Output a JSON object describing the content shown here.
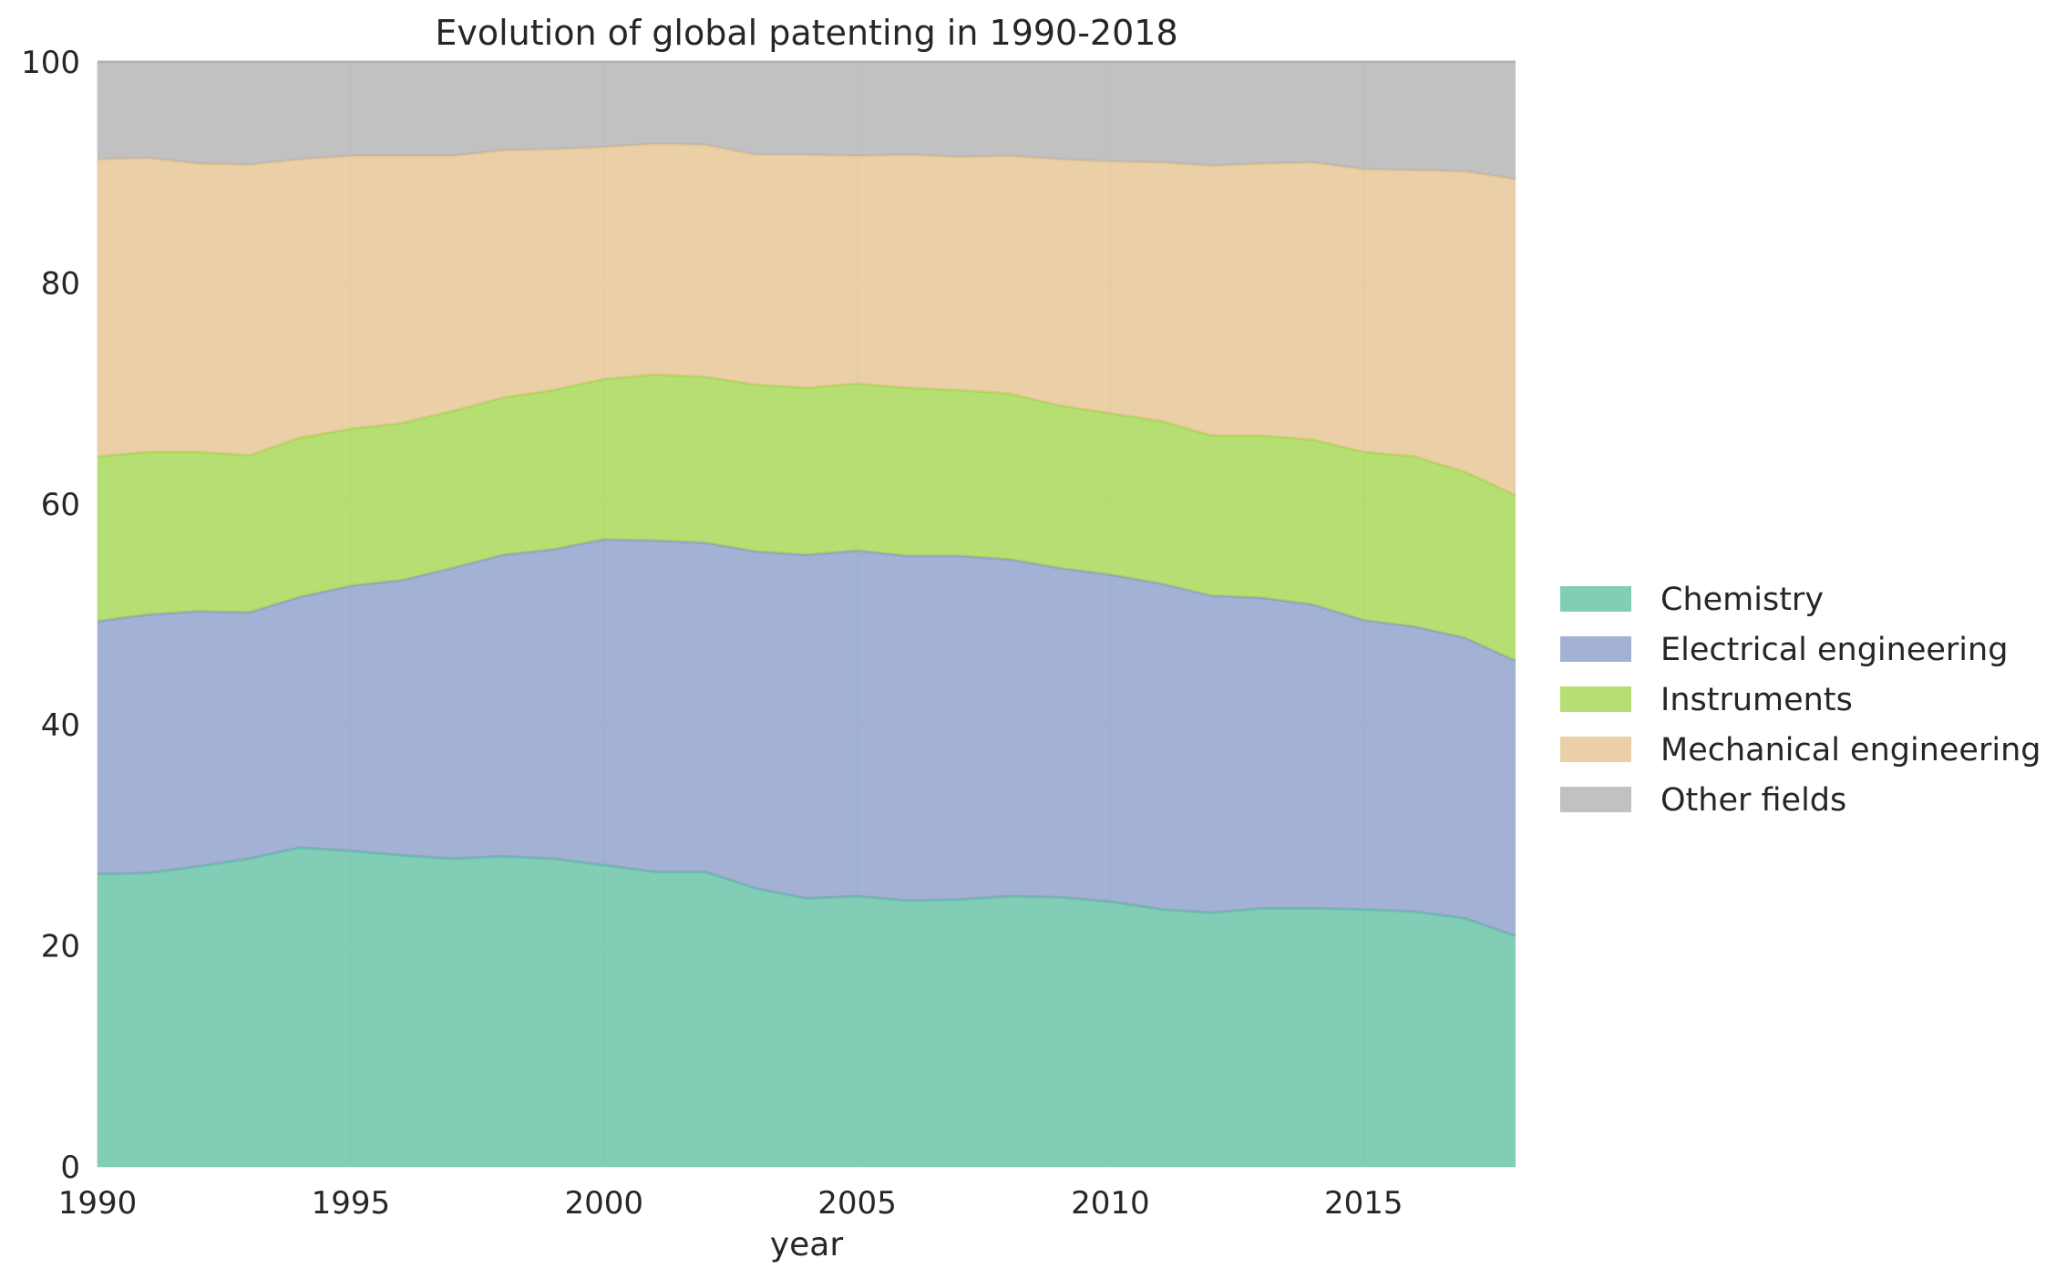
{
  "chart_data": {
    "type": "area",
    "stacked": true,
    "title": "Evolution of global patenting in 1990-2018",
    "xlabel": "year",
    "ylabel": "",
    "xlim": [
      1990,
      2018
    ],
    "ylim": [
      0,
      100
    ],
    "grid": true,
    "legend_position": "right",
    "x_ticks": [
      1990,
      1995,
      2000,
      2005,
      2010,
      2015
    ],
    "y_ticks": [
      0,
      20,
      40,
      60,
      80,
      100
    ],
    "x": [
      1990,
      1991,
      1992,
      1993,
      1994,
      1995,
      1996,
      1997,
      1998,
      1999,
      2000,
      2001,
      2002,
      2003,
      2004,
      2005,
      2006,
      2007,
      2008,
      2009,
      2010,
      2011,
      2012,
      2013,
      2014,
      2015,
      2016,
      2017,
      2018
    ],
    "series": [
      {
        "name": "Chemistry",
        "color": "#66c2a5",
        "values": [
          26.5,
          26.6,
          27.2,
          27.9,
          28.9,
          28.6,
          28.2,
          27.9,
          28.1,
          27.9,
          27.3,
          26.7,
          26.7,
          25.2,
          24.3,
          24.5,
          24.1,
          24.2,
          24.5,
          24.4,
          24.0,
          23.3,
          23.0,
          23.4,
          23.4,
          23.3,
          23.1,
          22.5,
          20.9
        ]
      },
      {
        "name": "Electrical engineering",
        "color": "#8da0cb",
        "values": [
          22.9,
          23.4,
          23.1,
          22.3,
          22.7,
          24.0,
          24.9,
          26.3,
          27.3,
          28.0,
          29.5,
          30.0,
          29.8,
          30.5,
          31.1,
          31.3,
          31.2,
          31.1,
          30.5,
          29.8,
          29.6,
          29.5,
          28.7,
          28.1,
          27.5,
          26.2,
          25.8,
          25.4,
          24.9
        ]
      },
      {
        "name": "Instruments",
        "color": "#a6d854",
        "values": [
          14.9,
          14.7,
          14.4,
          14.2,
          14.4,
          14.2,
          14.2,
          14.2,
          14.2,
          14.4,
          14.5,
          15.0,
          15.0,
          15.1,
          15.1,
          15.1,
          15.2,
          15.0,
          15.0,
          14.7,
          14.6,
          14.7,
          14.5,
          14.7,
          14.9,
          15.2,
          15.4,
          15.0,
          15.0
        ]
      },
      {
        "name": "Mechanical engineering",
        "color": "#e5c494",
        "values": [
          26.9,
          26.6,
          26.1,
          26.3,
          25.2,
          24.7,
          24.2,
          23.1,
          22.4,
          21.8,
          21.0,
          20.9,
          21.0,
          20.8,
          21.1,
          20.6,
          21.1,
          21.1,
          21.5,
          22.3,
          22.8,
          23.4,
          24.4,
          24.6,
          25.1,
          25.6,
          25.9,
          27.2,
          28.6
        ]
      },
      {
        "name": "Other fields",
        "color": "#b3b3b3",
        "values": [
          8.8,
          8.7,
          9.2,
          9.3,
          8.8,
          8.5,
          8.5,
          8.5,
          8.0,
          7.9,
          7.7,
          7.4,
          7.5,
          8.4,
          8.4,
          8.5,
          8.4,
          8.6,
          8.5,
          8.8,
          9.0,
          9.1,
          9.4,
          9.2,
          9.1,
          9.7,
          9.8,
          9.9,
          10.6
        ]
      }
    ]
  }
}
